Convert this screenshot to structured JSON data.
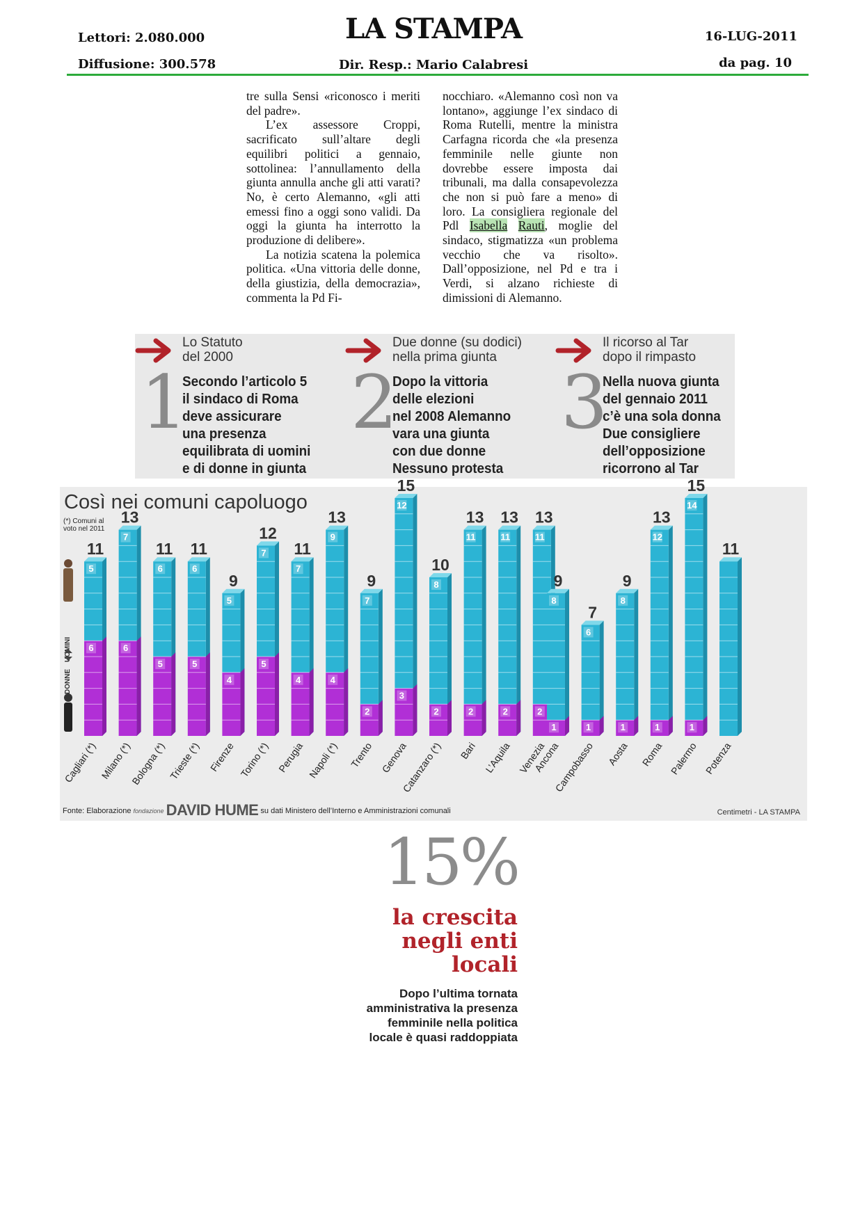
{
  "header": {
    "lettori": "Lettori: 2.080.000",
    "diffusione": "Diffusione: 300.578",
    "masthead": "LA STAMPA",
    "dir_resp": "Dir. Resp.:  Mario Calabresi",
    "date": "16-LUG-2011",
    "page": "da pag.  10"
  },
  "article": {
    "col1": [
      "tre sulla Sensi «riconosco i meriti del padre».",
      "L’ex assessore Croppi, sacrificato sull’altare degli equilibri politici a gennaio, sottolinea: l’annullamento della giunta annulla anche gli atti varati? No, è certo Alemanno, «gli atti emessi fino a oggi sono validi. Da oggi la giunta ha interrotto la produzione di delibere».",
      "La notizia scatena la polemica politica. «Una vittoria delle donne, della giustizia, della democrazia», commenta la Pd Fi-"
    ],
    "col2_before": "nocchiaro. «Alemanno così non va lontano», aggiunge l’ex sindaco di Roma Rutelli, mentre la ministra Carfagna ricorda che «la presenza femminile nelle giunte non dovrebbe essere imposta dai tribunali, ma dalla consapevolezza che non si può fare a meno» di loro. La consigliera regionale del Pdl",
    "col2_hl1": "Isabella",
    "col2_hl2": "Rauti",
    "col2_after": ", moglie del sindaco, stigmatizza «un problema vecchio che va risolto». Dall’opposizione, nel Pd e tra i Verdi, si alzano richieste di dimissioni di Alemanno."
  },
  "steps": [
    {
      "num": "1",
      "sub": "Lo Statuto\ndel 2000",
      "text": "Secondo l’articolo 5\nil sindaco di Roma\ndeve assicurare\nuna presenza\nequilibrata di uomini\ne di donne in giunta"
    },
    {
      "num": "2",
      "sub": "Due donne (su dodici)\nnella prima giunta",
      "text": "Dopo la vittoria\ndelle elezioni\nnel 2008 Alemanno\nvara una giunta\ncon due donne\nNessuno protesta"
    },
    {
      "num": "3",
      "sub": "Il ricorso al Tar\ndopo il rimpasto",
      "text": "Nella nuova giunta\ndel gennaio 2011\nc’è una sola donna\nDue consigliere\ndell’opposizione\nricorrono al Tar"
    }
  ],
  "chart_data": {
    "type": "bar",
    "title": "Così nei comuni capoluogo",
    "note": "(*) Comuni al voto nel 2011",
    "axis_labels": {
      "men": "UOMINI",
      "women": "DONNE"
    },
    "categories": [
      "Cagliari (*)",
      "Milano (*)",
      "Bologna (*)",
      "Trieste (*)",
      "Firenze",
      "Torino (*)",
      "Perugia",
      "Napoli (*)",
      "Trento",
      "Genova",
      "Catanzaro (*)",
      "Bari",
      "L’Aquila",
      "Venezia",
      "Ancona",
      "Campobasso",
      "Aosta",
      "Roma",
      "Palermo",
      "Potenza"
    ],
    "series": [
      {
        "name": "DONNE",
        "values": [
          6,
          6,
          5,
          5,
          4,
          5,
          4,
          4,
          2,
          3,
          2,
          2,
          2,
          2,
          1,
          1,
          1,
          1,
          1,
          0
        ]
      },
      {
        "name": "UOMINI",
        "values": [
          5,
          7,
          6,
          6,
          5,
          7,
          7,
          9,
          7,
          12,
          8,
          11,
          11,
          11,
          8,
          6,
          8,
          12,
          14,
          11
        ]
      }
    ],
    "totals": [
      11,
      13,
      11,
      11,
      9,
      12,
      11,
      13,
      9,
      15,
      10,
      13,
      13,
      13,
      9,
      7,
      9,
      13,
      15,
      11
    ],
    "colors": {
      "women": "#b12fd6",
      "men": "#2cb4d4",
      "background": "#ececec"
    },
    "source": {
      "prefix": "Fonte: Elaborazione",
      "foundation": "fondazione",
      "brand": "DAVID HUME",
      "suffix": "su dati Ministero dell’Interno e Amministrazioni comunali"
    },
    "credit": "Centimetri - LA STAMPA"
  },
  "stat": {
    "value": "15%",
    "headline": "la crescita\nnegli enti locali",
    "text": "Dopo l’ultima tornata\namministrativa la presenza\nfemminile nella politica\nlocale è quasi raddoppiata"
  }
}
